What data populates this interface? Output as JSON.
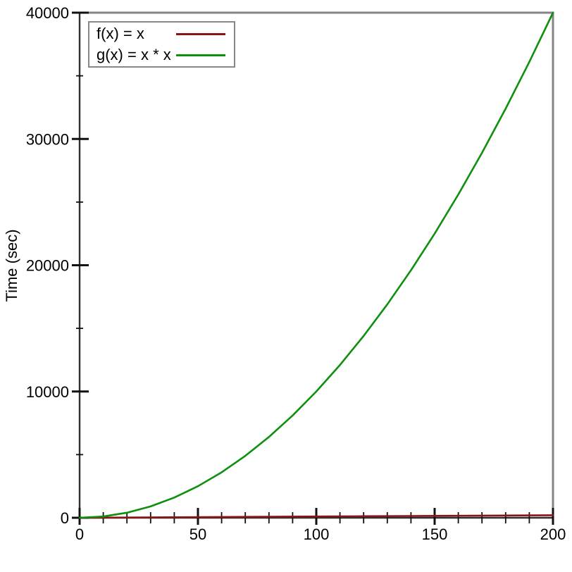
{
  "chart_data": {
    "type": "line",
    "title": "",
    "xlabel": "",
    "ylabel": "Time (sec)",
    "xlim": [
      0,
      200
    ],
    "ylim": [
      0,
      40000
    ],
    "x_major_ticks": [
      0,
      50,
      100,
      150,
      200
    ],
    "x_tick_labels": [
      "0",
      "50",
      "100",
      "150",
      "200"
    ],
    "x_minor_step": 10,
    "y_major_ticks": [
      0,
      10000,
      20000,
      30000,
      40000
    ],
    "y_tick_labels": [
      "0",
      "10000",
      "20000",
      "30000",
      "40000"
    ],
    "y_minor_step": 5000,
    "grid": false,
    "legend_position": "top-left",
    "series": [
      {
        "name": "f(x) = x",
        "color": "#8b1515",
        "x": [
          0,
          20,
          40,
          60,
          80,
          100,
          120,
          140,
          160,
          180,
          200
        ],
        "y": [
          0,
          20,
          40,
          60,
          80,
          100,
          120,
          140,
          160,
          180,
          200
        ]
      },
      {
        "name": "g(x) = x * x",
        "color": "#0e8f0e",
        "x": [
          0,
          10,
          20,
          30,
          40,
          50,
          60,
          70,
          80,
          90,
          100,
          110,
          120,
          130,
          140,
          150,
          160,
          170,
          180,
          190,
          200
        ],
        "y": [
          0,
          100,
          400,
          900,
          1600,
          2500,
          3600,
          4900,
          6400,
          8100,
          10000,
          12100,
          14400,
          16900,
          19600,
          22500,
          25600,
          28900,
          32400,
          36100,
          40000
        ]
      }
    ],
    "frame": {
      "axis_color": "#2f2f2f",
      "tick_color": "#111111",
      "border_color": "#848484"
    }
  }
}
